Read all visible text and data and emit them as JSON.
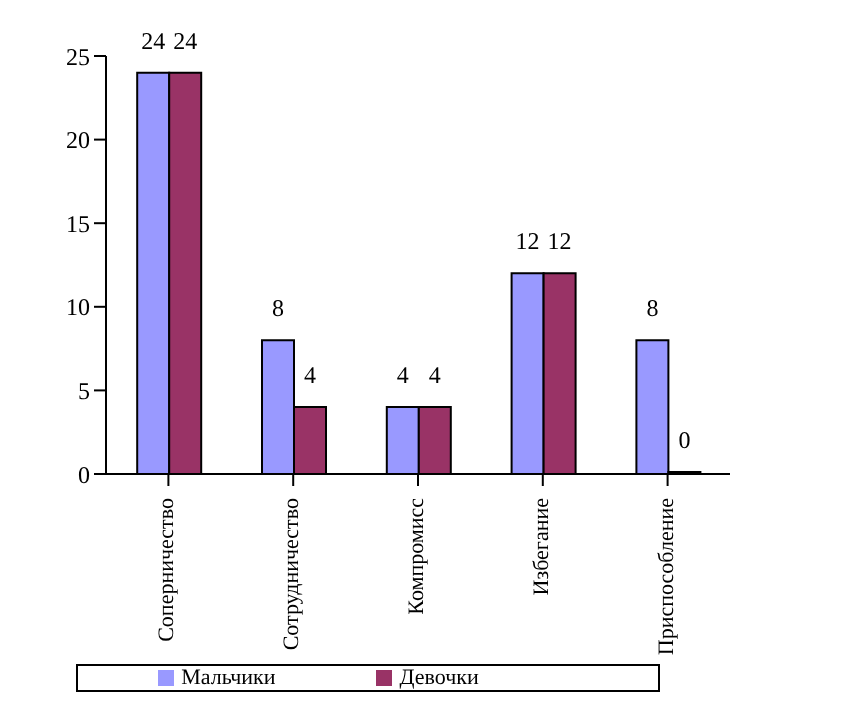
{
  "chart_data": {
    "type": "bar",
    "categories": [
      "Соперничество",
      "Сотрудничество",
      "Компромисс",
      "Избегание",
      "Приспособление"
    ],
    "series": [
      {
        "name": "Мальчики",
        "color": "#9999ff",
        "values": [
          24,
          8,
          4,
          12,
          8
        ]
      },
      {
        "name": "Девочки",
        "color": "#993366",
        "values": [
          24,
          4,
          4,
          12,
          0
        ]
      }
    ],
    "ylim": [
      0,
      25
    ],
    "yticks": [
      0,
      5,
      10,
      15,
      20,
      25
    ],
    "grid": false,
    "legend": "bottom",
    "data_labels": true
  }
}
